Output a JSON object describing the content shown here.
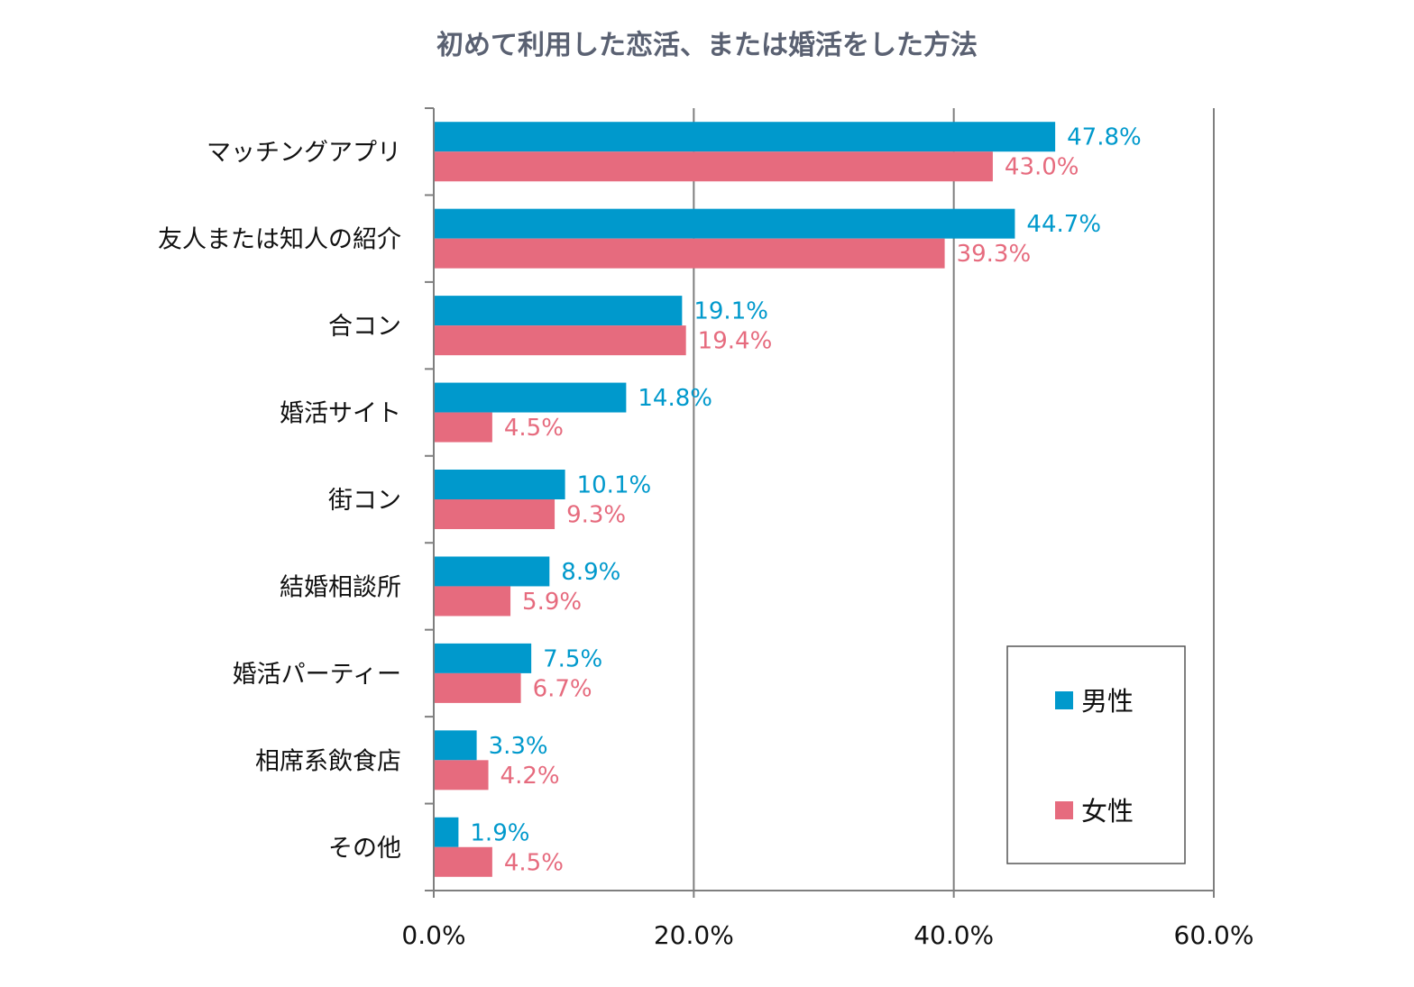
{
  "chart_data": {
    "type": "bar",
    "orientation": "horizontal",
    "title": "初めて利用した恋活、または婚活をした方法",
    "categories": [
      "マッチングアプリ",
      "友人または知人の紹介",
      "合コン",
      "婚活サイト",
      "街コン",
      "結婚相談所",
      "婚活パーティー",
      "相席系飲食店",
      "その他"
    ],
    "series": [
      {
        "name": "男性",
        "color": "#0099cc",
        "values": [
          47.8,
          44.7,
          19.1,
          14.8,
          10.1,
          8.9,
          7.5,
          3.3,
          1.9
        ],
        "labels": [
          "47.8%",
          "44.7%",
          "19.1%",
          "14.8%",
          "10.1%",
          "8.9%",
          "7.5%",
          "3.3%",
          "1.9%"
        ]
      },
      {
        "name": "女性",
        "color": "#e66b7e",
        "values": [
          43.0,
          39.3,
          19.4,
          4.5,
          9.3,
          5.9,
          6.7,
          4.2,
          4.5
        ],
        "labels": [
          "43.0%",
          "39.3%",
          "19.4%",
          "4.5%",
          "9.3%",
          "5.9%",
          "6.7%",
          "4.2%",
          "4.5%"
        ]
      }
    ],
    "xlim": [
      0,
      60
    ],
    "xticks": [
      0,
      20,
      40,
      60
    ],
    "xtick_labels": [
      "0.0%",
      "20.0%",
      "40.0%",
      "60.0%"
    ],
    "grid": true,
    "legend_position": "bottom-right"
  }
}
